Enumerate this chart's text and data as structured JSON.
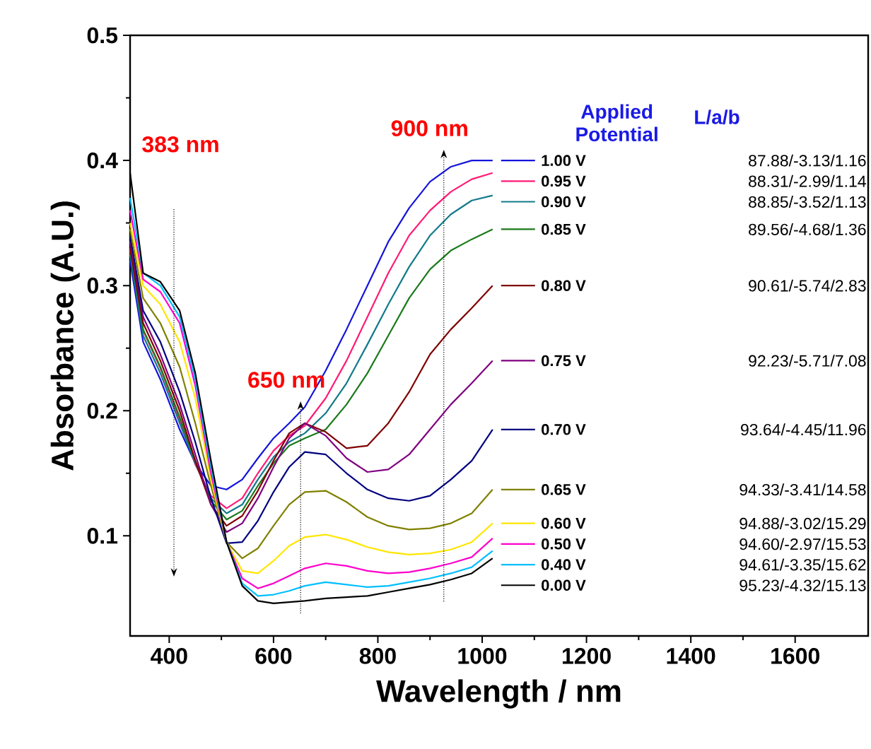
{
  "chart_data": {
    "type": "line",
    "xlabel": "Wavelength / nm",
    "ylabel": "Absorbance (A.U.)",
    "legend_title": "Applied Potential",
    "legend": "right",
    "grid": false,
    "marker": "none",
    "line_style": "solid",
    "xlim": [
      325,
      1740
    ],
    "ylim": [
      0.02,
      0.5
    ],
    "xticks": [
      400,
      600,
      800,
      1000,
      1200,
      1400,
      1600
    ],
    "yticks": [
      0.1,
      0.2,
      0.3,
      0.4,
      0.5
    ],
    "x": [
      325,
      350,
      383,
      420,
      450,
      480,
      510,
      540,
      570,
      600,
      630,
      660,
      700,
      740,
      780,
      820,
      860,
      900,
      940,
      980,
      1020
    ],
    "series": [
      {
        "name": "1.00 V",
        "color": "#1414dc",
        "values": [
          0.32,
          0.255,
          0.225,
          0.185,
          0.158,
          0.14,
          0.137,
          0.145,
          0.162,
          0.178,
          0.19,
          0.203,
          0.232,
          0.265,
          0.3,
          0.335,
          0.362,
          0.383,
          0.395,
          0.4,
          0.4
        ]
      },
      {
        "name": "0.95 V",
        "color": "#ff1a75",
        "values": [
          0.328,
          0.264,
          0.234,
          0.193,
          0.157,
          0.132,
          0.122,
          0.13,
          0.15,
          0.168,
          0.18,
          0.188,
          0.21,
          0.24,
          0.275,
          0.31,
          0.34,
          0.36,
          0.375,
          0.385,
          0.39
        ]
      },
      {
        "name": "0.90 V",
        "color": "#127a8a",
        "values": [
          0.325,
          0.26,
          0.23,
          0.19,
          0.158,
          0.13,
          0.118,
          0.125,
          0.145,
          0.163,
          0.175,
          0.182,
          0.198,
          0.222,
          0.253,
          0.285,
          0.315,
          0.34,
          0.357,
          0.368,
          0.372
        ]
      },
      {
        "name": "0.85 V",
        "color": "#1a7a1a",
        "values": [
          0.33,
          0.265,
          0.235,
          0.195,
          0.16,
          0.128,
          0.113,
          0.12,
          0.14,
          0.158,
          0.172,
          0.178,
          0.185,
          0.205,
          0.23,
          0.26,
          0.29,
          0.313,
          0.328,
          0.337,
          0.345
        ]
      },
      {
        "name": "0.80 V",
        "color": "#800000",
        "values": [
          0.33,
          0.27,
          0.24,
          0.2,
          0.16,
          0.125,
          0.108,
          0.116,
          0.136,
          0.16,
          0.182,
          0.19,
          0.183,
          0.17,
          0.172,
          0.19,
          0.215,
          0.245,
          0.265,
          0.282,
          0.3
        ]
      },
      {
        "name": "0.75 V",
        "color": "#800080",
        "values": [
          0.335,
          0.275,
          0.245,
          0.205,
          0.165,
          0.125,
          0.103,
          0.11,
          0.13,
          0.155,
          0.178,
          0.19,
          0.18,
          0.162,
          0.151,
          0.153,
          0.165,
          0.185,
          0.205,
          0.222,
          0.24
        ]
      },
      {
        "name": "0.70 V",
        "color": "#000080",
        "values": [
          0.34,
          0.28,
          0.255,
          0.215,
          0.175,
          0.13,
          0.094,
          0.095,
          0.112,
          0.135,
          0.155,
          0.167,
          0.165,
          0.15,
          0.137,
          0.13,
          0.128,
          0.132,
          0.145,
          0.16,
          0.185
        ]
      },
      {
        "name": "0.65 V",
        "color": "#808000",
        "values": [
          0.345,
          0.29,
          0.27,
          0.235,
          0.19,
          0.14,
          0.095,
          0.082,
          0.09,
          0.108,
          0.125,
          0.135,
          0.136,
          0.127,
          0.115,
          0.108,
          0.105,
          0.106,
          0.11,
          0.118,
          0.137
        ]
      },
      {
        "name": "0.60 V",
        "color": "#ffe600",
        "values": [
          0.35,
          0.3,
          0.285,
          0.255,
          0.21,
          0.145,
          0.095,
          0.072,
          0.07,
          0.08,
          0.092,
          0.099,
          0.101,
          0.097,
          0.091,
          0.087,
          0.085,
          0.086,
          0.089,
          0.095,
          0.11
        ]
      },
      {
        "name": "0.50 V",
        "color": "#ff00cc",
        "values": [
          0.36,
          0.305,
          0.295,
          0.27,
          0.22,
          0.15,
          0.095,
          0.066,
          0.058,
          0.062,
          0.068,
          0.074,
          0.078,
          0.076,
          0.072,
          0.07,
          0.071,
          0.074,
          0.078,
          0.083,
          0.098
        ]
      },
      {
        "name": "0.40 V",
        "color": "#00bfff",
        "values": [
          0.37,
          0.31,
          0.3,
          0.275,
          0.225,
          0.155,
          0.095,
          0.062,
          0.052,
          0.053,
          0.056,
          0.06,
          0.063,
          0.061,
          0.059,
          0.06,
          0.063,
          0.066,
          0.07,
          0.075,
          0.088
        ]
      },
      {
        "name": "0.00 V",
        "color": "#000000",
        "values": [
          0.39,
          0.31,
          0.303,
          0.28,
          0.23,
          0.16,
          0.095,
          0.06,
          0.048,
          0.046,
          0.047,
          0.048,
          0.05,
          0.051,
          0.052,
          0.055,
          0.058,
          0.061,
          0.065,
          0.07,
          0.082
        ]
      }
    ],
    "annotations": [
      "383 nm",
      {
        "text": "650 nm",
        "x": 660,
        "y": 0.203
      },
      {
        "text": "900 nm",
        "x": 940,
        "y": 0.395
      },
      "L/a/b",
      "87.88/-3.13/1.16",
      "88.31/-2.99/1.14",
      "88.85/-3.52/1.13",
      "89.56/-4.68/1.36",
      "90.61/-5.74/2.83",
      "92.23/-5.71/7.08",
      "93.64/-4.45/11.96",
      "94.33/-3.41/14.58",
      "94.88/-3.02/15.29",
      "94.60/-2.97/15.53",
      "94.61/-3.35/15.62",
      "95.23/-4.32/15.13"
    ]
  }
}
